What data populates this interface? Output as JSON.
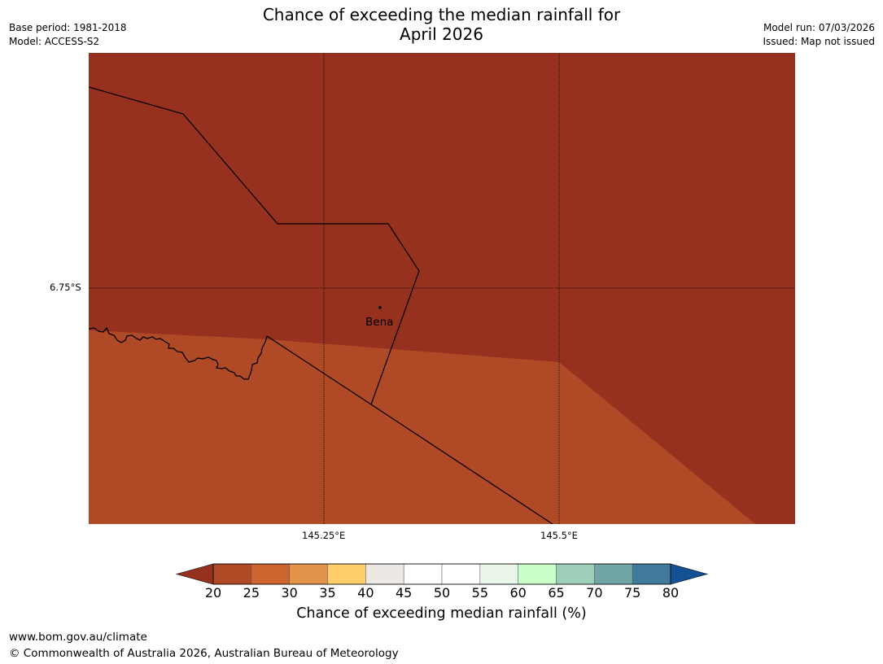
{
  "header": {
    "title_line1": "Chance of exceeding the median rainfall for",
    "title_line2": "April 2026",
    "base_period": "Base period: 1981-2018",
    "model": "Model: ACCESS-S2",
    "model_run": "Model run: 07/03/2026",
    "issued": "Issued: Map not issued"
  },
  "map": {
    "lat_label": "6.75°S",
    "lon_labels": [
      "145.25°E",
      "145.5°E"
    ],
    "place_label": "Bena",
    "region_colors": {
      "20_or_below": "#96311f",
      "20_to_25": "#b04a26"
    }
  },
  "colorbar": {
    "label": "Chance of exceeding median rainfall (%)",
    "ticks": [
      "20",
      "25",
      "30",
      "35",
      "40",
      "45",
      "50",
      "55",
      "60",
      "65",
      "70",
      "75",
      "80"
    ],
    "low_extend_color": "#96311f",
    "high_extend_color": "#125294",
    "segment_colors": [
      "#b04a26",
      "#ce6430",
      "#e3944a",
      "#fece6b",
      "#ece8e3",
      "#ffffff",
      "#ffffff",
      "#e9f6e9",
      "#caffca",
      "#9ecfb9",
      "#70a7a6",
      "#3f7a9c"
    ]
  },
  "footer": {
    "website": "www.bom.gov.au/climate",
    "copyright": "© Commonwealth of Australia 2026, Australian Bureau of Meteorology"
  }
}
